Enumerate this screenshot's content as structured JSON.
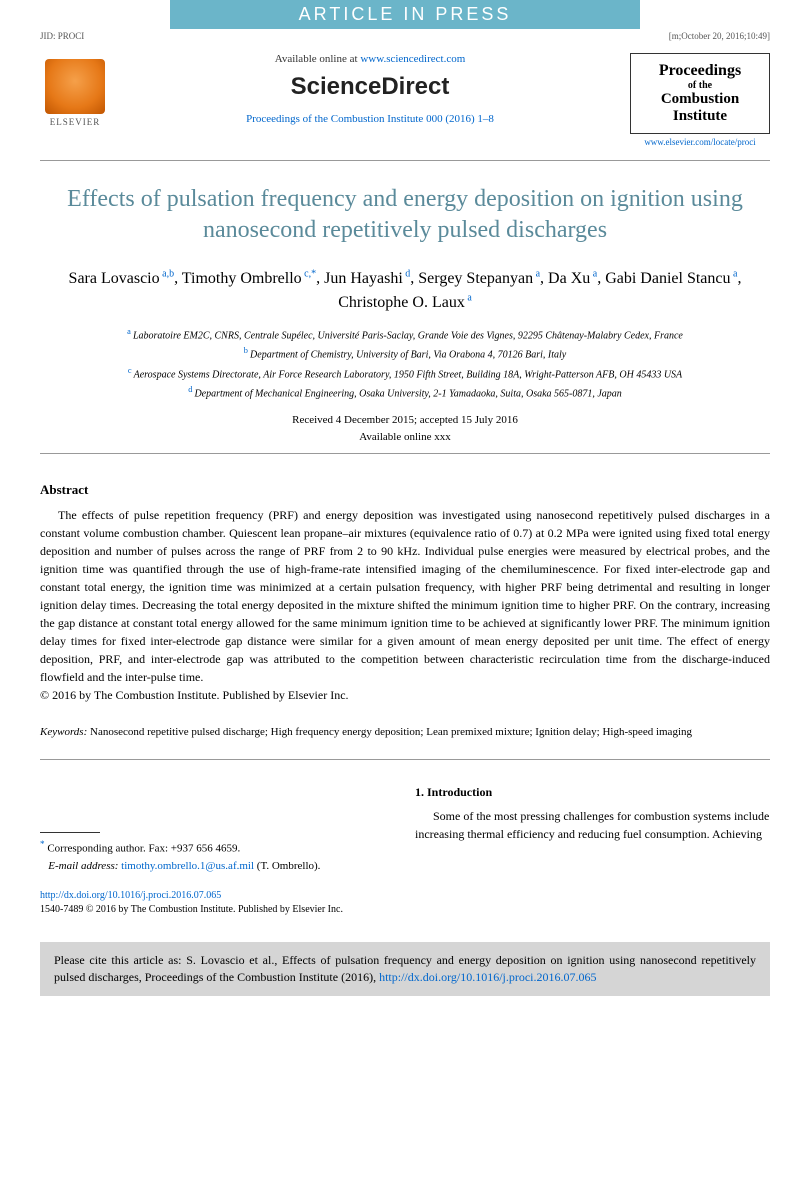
{
  "banner": "ARTICLE IN PRESS",
  "topMeta": {
    "left": "JID: PROCI",
    "right": "[m;October 20, 2016;10:49]"
  },
  "header": {
    "elsevier": "ELSEVIER",
    "available": "Available online at ",
    "sdUrl": "www.sciencedirect.com",
    "scienceDirect": "ScienceDirect",
    "journalRef": "Proceedings of the Combustion Institute 000 (2016) 1–8",
    "journalBox": {
      "line1": "Proceedings",
      "line2": "of the",
      "line3": "Combustion",
      "line4": "Institute"
    },
    "journalUrl": "www.elsevier.com/locate/proci"
  },
  "title": "Effects of pulsation frequency and energy deposition on ignition using nanosecond repetitively pulsed discharges",
  "authors": [
    {
      "name": "Sara Lovascio",
      "sup": "a,b"
    },
    {
      "name": "Timothy Ombrello",
      "sup": "c,*"
    },
    {
      "name": "Jun Hayashi",
      "sup": "d"
    },
    {
      "name": "Sergey Stepanyan",
      "sup": "a"
    },
    {
      "name": "Da Xu",
      "sup": "a"
    },
    {
      "name": "Gabi Daniel Stancu",
      "sup": "a"
    },
    {
      "name": "Christophe O. Laux",
      "sup": "a"
    }
  ],
  "affiliations": [
    {
      "sup": "a",
      "text": "Laboratoire EM2C, CNRS, Centrale Supélec, Université Paris-Saclay, Grande Voie des Vignes, 92295 Châtenay-Malabry Cedex, France"
    },
    {
      "sup": "b",
      "text": "Department of Chemistry, University of Bari, Via Orabona 4, 70126 Bari, Italy"
    },
    {
      "sup": "c",
      "text": "Aerospace Systems Directorate, Air Force Research Laboratory, 1950 Fifth Street, Building 18A, Wright-Patterson AFB, OH 45433 USA"
    },
    {
      "sup": "d",
      "text": "Department of Mechanical Engineering, Osaka University, 2-1 Yamadaoka, Suita, Osaka 565-0871, Japan"
    }
  ],
  "dates": {
    "received": "Received 4 December 2015; accepted 15 July 2016",
    "online": "Available online xxx"
  },
  "abstract": {
    "heading": "Abstract",
    "text": "The effects of pulse repetition frequency (PRF) and energy deposition was investigated using nanosecond repetitively pulsed discharges in a constant volume combustion chamber. Quiescent lean propane–air mixtures (equivalence ratio of 0.7) at 0.2 MPa were ignited using fixed total energy deposition and number of pulses across the range of PRF from 2 to 90 kHz. Individual pulse energies were measured by electrical probes, and the ignition time was quantified through the use of high-frame-rate intensified imaging of the chemiluminescence. For fixed inter-electrode gap and constant total energy, the ignition time was minimized at a certain pulsation frequency, with higher PRF being detrimental and resulting in longer ignition delay times. Decreasing the total energy deposited in the mixture shifted the minimum ignition time to higher PRF. On the contrary, increasing the gap distance at constant total energy allowed for the same minimum ignition time to be achieved at significantly lower PRF. The minimum ignition delay times for fixed inter-electrode gap distance were similar for a given amount of mean energy deposited per unit time. The effect of energy deposition, PRF, and inter-electrode gap was attributed to the competition between characteristic recirculation time from the discharge-induced flowfield and the inter-pulse time.",
    "copyright": "© 2016 by The Combustion Institute. Published by Elsevier Inc."
  },
  "keywords": {
    "label": "Keywords:",
    "text": " Nanosecond repetitive pulsed discharge; High frequency energy deposition; Lean premixed mixture; Ignition delay; High-speed imaging"
  },
  "corresponding": {
    "star": "*",
    "text": " Corresponding author. Fax: +937 656 4659.",
    "emailLabel": "E-mail address: ",
    "email": "timothy.ombrello.1@us.af.mil",
    "emailSuffix": " (T. Ombrello)."
  },
  "intro": {
    "heading": "1. Introduction",
    "text": "Some of the most pressing challenges for combustion systems include increasing thermal efficiency and reducing fuel consumption. Achieving"
  },
  "doi": {
    "link": "http://dx.doi.org/10.1016/j.proci.2016.07.065",
    "issn": "1540-7489 © 2016 by The Combustion Institute. Published by Elsevier Inc."
  },
  "citeBox": {
    "text": "Please cite this article as: S. Lovascio et al., Effects of pulsation frequency and energy deposition on ignition using nanosecond repetitively pulsed discharges, Proceedings of the Combustion Institute (2016), ",
    "link": "http://dx.doi.org/10.1016/j.proci.2016.07.065"
  },
  "colors": {
    "bannerBg": "#6bb5c9",
    "titleColor": "#5a8a9a",
    "linkColor": "#0066cc",
    "citeBoxBg": "#d5d5d5"
  }
}
